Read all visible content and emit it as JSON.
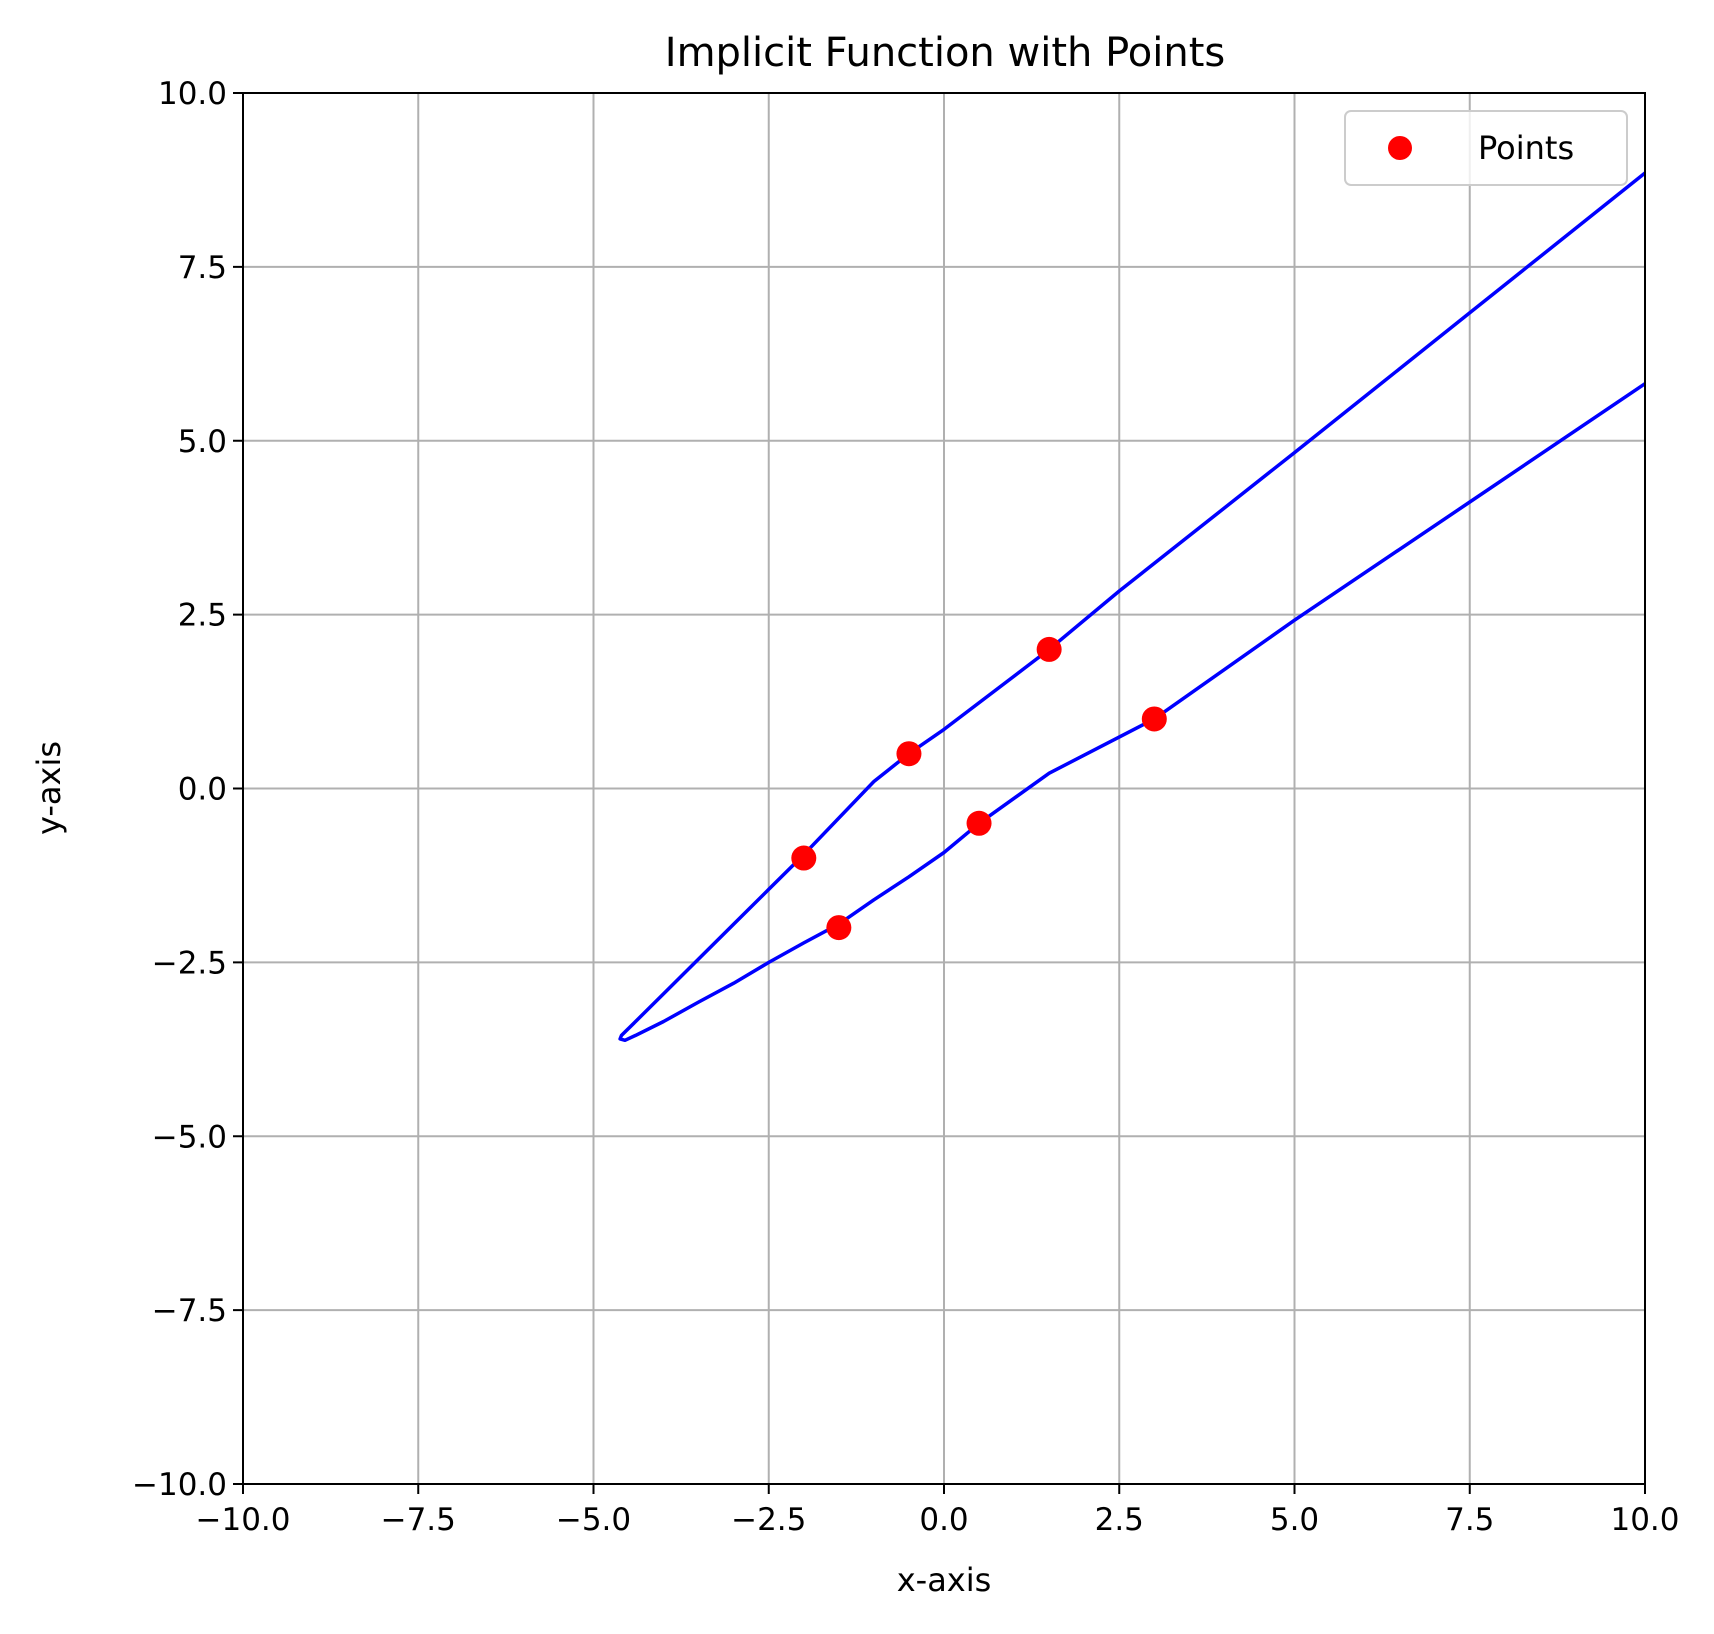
{
  "chart_data": {
    "type": "line",
    "title": "Implicit Function with Points",
    "xlabel": "x-axis",
    "ylabel": "y-axis",
    "xlim": [
      -10,
      10
    ],
    "ylim": [
      -10,
      10
    ],
    "xticks": [
      -10.0,
      -7.5,
      -5.0,
      -2.5,
      0.0,
      2.5,
      5.0,
      7.5,
      10.0
    ],
    "yticks": [
      -10.0,
      -7.5,
      -5.0,
      -2.5,
      0.0,
      2.5,
      5.0,
      7.5,
      10.0
    ],
    "xtick_labels": [
      "−10.0",
      "−7.5",
      "−5.0",
      "−2.5",
      "0.0",
      "2.5",
      "5.0",
      "7.5",
      "10.0"
    ],
    "ytick_labels": [
      "−10.0",
      "−7.5",
      "−5.0",
      "−2.5",
      "0.0",
      "2.5",
      "5.0",
      "7.5",
      "10.0"
    ],
    "grid": true,
    "legend": {
      "placement": "top-right",
      "entries": [
        "Points"
      ]
    },
    "curve": {
      "color": "#0000ff",
      "points": [
        [
          10.0,
          8.85
        ],
        [
          7.5,
          6.84
        ],
        [
          5.0,
          4.83
        ],
        [
          2.5,
          2.84
        ],
        [
          1.5,
          2.0
        ],
        [
          0.0,
          0.85
        ],
        [
          -0.5,
          0.5
        ],
        [
          -1.0,
          0.1
        ],
        [
          -2.0,
          -0.95
        ],
        [
          -2.5,
          -1.45
        ],
        [
          -3.0,
          -1.95
        ],
        [
          -3.5,
          -2.45
        ],
        [
          -4.0,
          -2.95
        ],
        [
          -4.4,
          -3.35
        ],
        [
          -4.6,
          -3.55
        ],
        [
          -4.62,
          -3.6
        ],
        [
          -4.55,
          -3.62
        ],
        [
          -4.4,
          -3.55
        ],
        [
          -4.0,
          -3.35
        ],
        [
          -3.5,
          -3.07
        ],
        [
          -3.0,
          -2.8
        ],
        [
          -2.5,
          -2.5
        ],
        [
          -2.0,
          -2.22
        ],
        [
          -1.5,
          -1.95
        ],
        [
          -1.0,
          -1.6
        ],
        [
          -0.5,
          -1.27
        ],
        [
          0.0,
          -0.92
        ],
        [
          0.5,
          -0.5
        ],
        [
          1.5,
          0.22
        ],
        [
          3.0,
          1.0
        ],
        [
          5.0,
          2.42
        ],
        [
          7.5,
          4.12
        ],
        [
          10.0,
          5.82
        ]
      ]
    },
    "series": [
      {
        "name": "Points",
        "type": "scatter",
        "color": "#ff0000",
        "x": [
          1.5,
          3.0,
          -0.5,
          0.5,
          -2.0,
          -1.5
        ],
        "y": [
          2.0,
          1.0,
          0.5,
          -0.5,
          -1.0,
          -2.0
        ]
      }
    ]
  }
}
